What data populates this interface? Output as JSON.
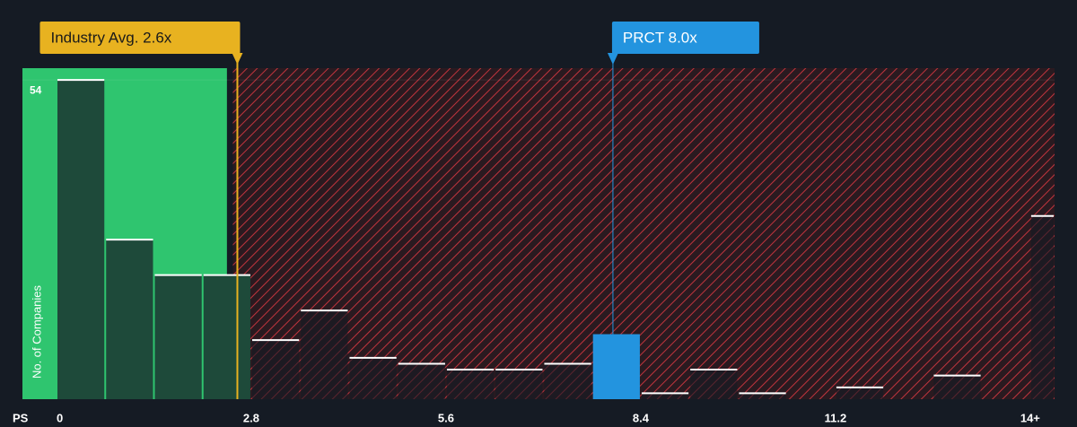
{
  "chart_data": {
    "type": "histogram",
    "bins": [
      0,
      0.7,
      1.4,
      2.1,
      2.8,
      3.5,
      4.2,
      4.9,
      5.6,
      6.3,
      7.0,
      7.7,
      8.4,
      9.1,
      9.8,
      10.5,
      11.2,
      11.9,
      12.6,
      13.3,
      14.0,
      14.35
    ],
    "counts": [
      54,
      27,
      21,
      21,
      10,
      15,
      7,
      6,
      5,
      5,
      6,
      11,
      1,
      5,
      1,
      0,
      2,
      0,
      4,
      0,
      31
    ],
    "highlight_bin": 11,
    "xlabel": "PS",
    "ylabel": "No. of Companies",
    "xlim": [
      0,
      14.35
    ],
    "xticks": [
      0,
      2.8,
      5.6,
      8.4,
      11.2,
      {
        "value": 14,
        "label": "14+"
      }
    ],
    "ylim": [
      0,
      56
    ],
    "yticks": [
      54
    ],
    "fair_below": 2.45,
    "bar_color": "#1e4a3a",
    "highlight_color": "#2394df",
    "annotations": [
      {
        "text": "Industry Avg. 2.6x",
        "x": 2.6,
        "color": "#e8b220"
      },
      {
        "text": "PRCT 8.0x",
        "x": 8.0,
        "color": "#2394df"
      }
    ]
  }
}
